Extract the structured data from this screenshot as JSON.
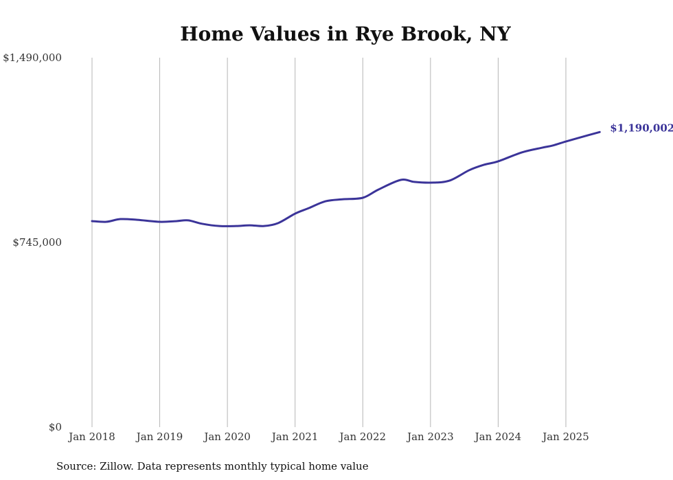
{
  "chart_data": {
    "type": "line",
    "title": "Home Values in Rye Brook, NY",
    "xlabel": "",
    "ylabel": "",
    "ylim": [
      0,
      1490000
    ],
    "xlim": [
      2018.0,
      2025.5
    ],
    "yticks": [
      {
        "value": 0,
        "label": "$0"
      },
      {
        "value": 745000,
        "label": "$745,000"
      },
      {
        "value": 1490000,
        "label": "$1,490,000"
      }
    ],
    "xticks": [
      {
        "value": 2018,
        "label": "Jan 2018"
      },
      {
        "value": 2019,
        "label": "Jan 2019"
      },
      {
        "value": 2020,
        "label": "Jan 2020"
      },
      {
        "value": 2021,
        "label": "Jan 2021"
      },
      {
        "value": 2022,
        "label": "Jan 2022"
      },
      {
        "value": 2023,
        "label": "Jan 2023"
      },
      {
        "value": 2024,
        "label": "Jan 2024"
      },
      {
        "value": 2025,
        "label": "Jan 2025"
      }
    ],
    "grid": "vertical",
    "series": [
      {
        "name": "Typical home value",
        "color": "#3b3499",
        "x": [
          2018.0,
          2018.21,
          2018.42,
          2018.67,
          2019.0,
          2019.25,
          2019.42,
          2019.63,
          2019.88,
          2020.13,
          2020.33,
          2020.54,
          2020.75,
          2021.0,
          2021.2,
          2021.45,
          2021.71,
          2022.0,
          2022.23,
          2022.56,
          2022.76,
          2023.0,
          2023.28,
          2023.57,
          2023.79,
          2024.0,
          2024.35,
          2024.65,
          2024.81,
          2025.0,
          2025.26,
          2025.5
        ],
        "values": [
          831000,
          828000,
          839000,
          836000,
          828000,
          831000,
          834000,
          820000,
          811000,
          811000,
          814000,
          811000,
          823000,
          861000,
          883000,
          911000,
          919000,
          925000,
          958000,
          997000,
          989000,
          986000,
          994000,
          1036000,
          1058000,
          1072000,
          1108000,
          1127000,
          1136000,
          1152000,
          1172000,
          1190002
        ]
      }
    ],
    "end_label": "$1,190,002"
  },
  "footer": {
    "source": "Source: Zillow. Data represents monthly typical home value"
  }
}
